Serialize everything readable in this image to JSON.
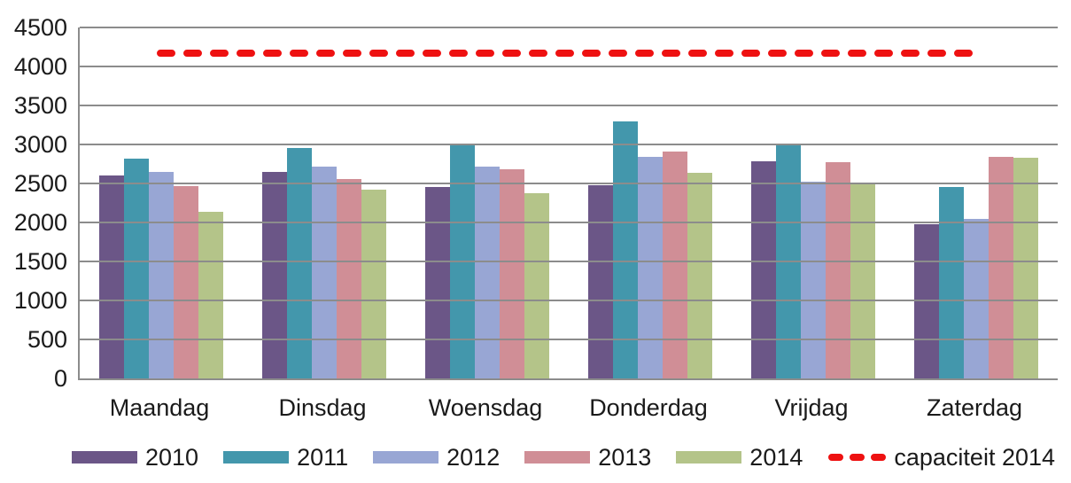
{
  "chart_data": {
    "type": "bar",
    "title": "",
    "categories": [
      "Maandag",
      "Dinsdag",
      "Woensdag",
      "Donderdag",
      "Vrijdag",
      "Zaterdag"
    ],
    "series": [
      {
        "name": "2010",
        "color": "#6B5687",
        "values": [
          2600,
          2650,
          2450,
          2480,
          2780,
          1980
        ]
      },
      {
        "name": "2011",
        "color": "#4397AC",
        "values": [
          2820,
          2960,
          2990,
          3290,
          3000,
          2460
        ]
      },
      {
        "name": "2012",
        "color": "#98A6D4",
        "values": [
          2650,
          2720,
          2720,
          2840,
          2520,
          2040
        ]
      },
      {
        "name": "2013",
        "color": "#D08E96",
        "values": [
          2470,
          2560,
          2680,
          2910,
          2770,
          2840
        ]
      },
      {
        "name": "2014",
        "color": "#B4C489",
        "values": [
          2140,
          2420,
          2370,
          2640,
          2510,
          2830
        ]
      }
    ],
    "reference_line": {
      "label": "capaciteit 2014",
      "value": 4170,
      "color": "#EE1111",
      "style": "dashed"
    },
    "y_ticks": [
      0,
      500,
      1000,
      1500,
      2000,
      2500,
      3000,
      3500,
      4000,
      4500
    ],
    "ylim": [
      0,
      4500
    ],
    "xlabel": "",
    "ylabel": "",
    "grid": true,
    "legend_position": "bottom",
    "colors": {
      "background": "#FFFFFF",
      "gridline": "#8C8C8C",
      "text": "#1A1A1A"
    }
  }
}
